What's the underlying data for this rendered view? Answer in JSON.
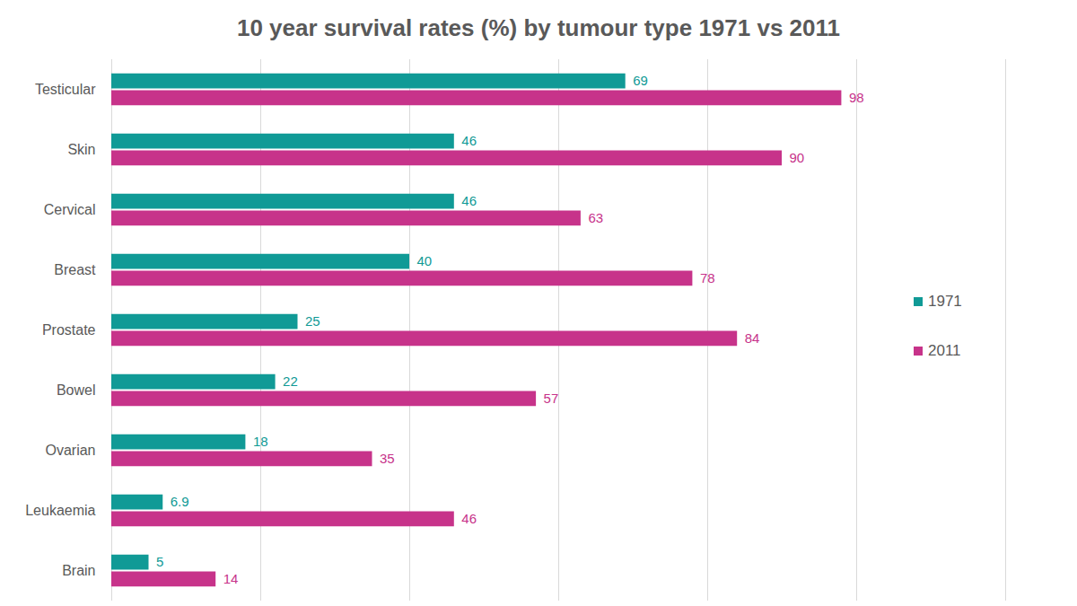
{
  "chart_data": {
    "type": "bar",
    "title": "10 year survival rates (%) by tumour type 1971 vs 2011",
    "orientation": "horizontal",
    "categories": [
      "Testicular",
      "Skin",
      "Cervical",
      "Breast",
      "Prostate",
      "Bowel",
      "Ovarian",
      "Leukaemia",
      "Brain"
    ],
    "series": [
      {
        "name": "1971",
        "color": "#109a96",
        "values": [
          69,
          46,
          46,
          40,
          25,
          22,
          18,
          6.9,
          5
        ]
      },
      {
        "name": "2011",
        "color": "#c7338a",
        "values": [
          98,
          90,
          63,
          78,
          84,
          57,
          35,
          46,
          14
        ]
      }
    ],
    "xlim": [
      0,
      120
    ],
    "xticks": [
      0,
      20,
      40,
      60,
      80,
      100,
      120
    ],
    "grid": true,
    "data_labels": true,
    "legend": "right",
    "tick_labels": "y"
  }
}
